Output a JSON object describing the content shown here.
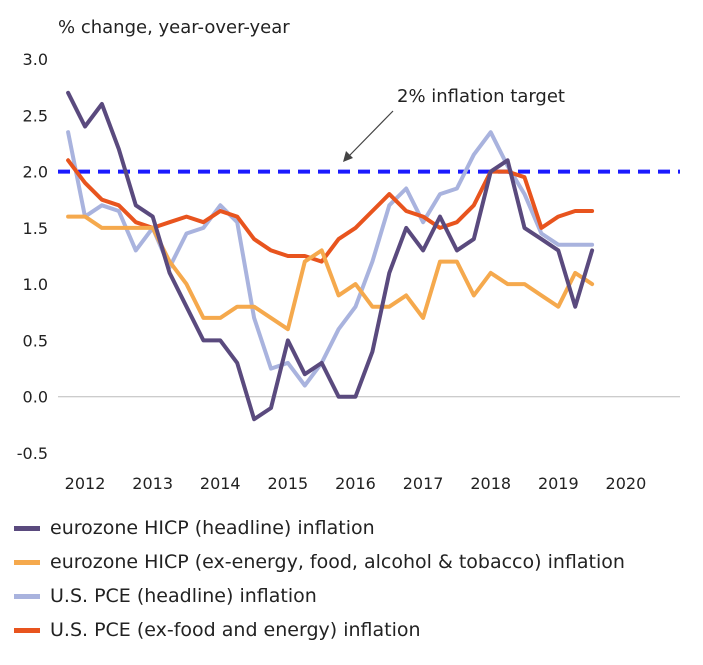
{
  "chart_data": {
    "type": "line",
    "ylabel": "% change, year-over-year",
    "ylim": [
      -0.5,
      3.0
    ],
    "y_ticks": [
      "3.0",
      "2.5",
      "2.0",
      "1.5",
      "1.0",
      "0.5",
      "0.0",
      "-0.5"
    ],
    "y_tick_values": [
      3.0,
      2.5,
      2.0,
      1.5,
      1.0,
      0.5,
      0.0,
      -0.5
    ],
    "x_ticks": [
      "2012",
      "2013",
      "2014",
      "2015",
      "2016",
      "2017",
      "2018",
      "2019",
      "2020"
    ],
    "x_tick_values": [
      2012,
      2013,
      2014,
      2015,
      2016,
      2017,
      2018,
      2019,
      2020
    ],
    "xlim": [
      2011.6,
      2020.8
    ],
    "grid": false,
    "legend_position": "bottom",
    "reference_line": {
      "value": 2.0,
      "label": "2% inflation target",
      "color": "#1a1aff",
      "style": "dashed"
    },
    "series": [
      {
        "name": "eurozone HICP (headline) inflation",
        "color": "#5a4a7e",
        "x": [
          2011.75,
          2012.0,
          2012.25,
          2012.5,
          2012.75,
          2013.0,
          2013.25,
          2013.5,
          2013.75,
          2014.0,
          2014.25,
          2014.5,
          2014.75,
          2015.0,
          2015.25,
          2015.5,
          2015.75,
          2016.0,
          2016.25,
          2016.5,
          2016.75,
          2017.0,
          2017.25,
          2017.5,
          2017.75,
          2018.0,
          2018.25,
          2018.5,
          2018.75,
          2019.0,
          2019.25,
          2019.5
        ],
        "values": [
          2.7,
          2.4,
          2.6,
          2.2,
          1.7,
          1.6,
          1.1,
          0.8,
          0.5,
          0.5,
          0.3,
          -0.2,
          -0.1,
          0.5,
          0.2,
          0.3,
          0.0,
          0.0,
          0.4,
          1.1,
          1.5,
          1.3,
          1.6,
          1.3,
          1.4,
          2.0,
          2.1,
          1.5,
          1.4,
          1.3,
          0.8,
          1.3
        ]
      },
      {
        "name": "eurozone HICP (ex-energy, food, alcohol & tobacco) inflation",
        "color": "#f5a94d",
        "x": [
          2011.75,
          2012.0,
          2012.25,
          2012.5,
          2012.75,
          2013.0,
          2013.25,
          2013.5,
          2013.75,
          2014.0,
          2014.25,
          2014.5,
          2014.75,
          2015.0,
          2015.25,
          2015.5,
          2015.75,
          2016.0,
          2016.25,
          2016.5,
          2016.75,
          2017.0,
          2017.25,
          2017.5,
          2017.75,
          2018.0,
          2018.25,
          2018.5,
          2018.75,
          2019.0,
          2019.25,
          2019.5
        ],
        "values": [
          1.6,
          1.6,
          1.5,
          1.5,
          1.5,
          1.5,
          1.2,
          1.0,
          0.7,
          0.7,
          0.8,
          0.8,
          0.7,
          0.6,
          1.2,
          1.3,
          0.9,
          1.0,
          0.8,
          0.8,
          0.9,
          0.7,
          1.2,
          1.2,
          0.9,
          1.1,
          1.0,
          1.0,
          0.9,
          0.8,
          1.1,
          1.0
        ]
      },
      {
        "name": "U.S. PCE (headline) inflation",
        "color": "#a9b3de",
        "x": [
          2011.75,
          2012.0,
          2012.25,
          2012.5,
          2012.75,
          2013.0,
          2013.25,
          2013.5,
          2013.75,
          2014.0,
          2014.25,
          2014.5,
          2014.75,
          2015.0,
          2015.25,
          2015.5,
          2015.75,
          2016.0,
          2016.25,
          2016.5,
          2016.75,
          2017.0,
          2017.25,
          2017.5,
          2017.75,
          2018.0,
          2018.25,
          2018.5,
          2018.75,
          2019.0,
          2019.25,
          2019.5
        ],
        "values": [
          2.35,
          1.6,
          1.7,
          1.65,
          1.3,
          1.5,
          1.15,
          1.45,
          1.5,
          1.7,
          1.55,
          0.7,
          0.25,
          0.3,
          0.1,
          0.3,
          0.6,
          0.8,
          1.2,
          1.7,
          1.85,
          1.55,
          1.8,
          1.85,
          2.15,
          2.35,
          2.05,
          1.8,
          1.45,
          1.35,
          1.35,
          1.35
        ]
      },
      {
        "name": "U.S. PCE (ex-food and energy) inflation",
        "color": "#e8541e",
        "x": [
          2011.75,
          2012.0,
          2012.25,
          2012.5,
          2012.75,
          2013.0,
          2013.25,
          2013.5,
          2013.75,
          2014.0,
          2014.25,
          2014.5,
          2014.75,
          2015.0,
          2015.25,
          2015.5,
          2015.75,
          2016.0,
          2016.25,
          2016.5,
          2016.75,
          2017.0,
          2017.25,
          2017.5,
          2017.75,
          2018.0,
          2018.25,
          2018.5,
          2018.75,
          2019.0,
          2019.25,
          2019.5
        ],
        "values": [
          2.1,
          1.9,
          1.75,
          1.7,
          1.55,
          1.5,
          1.55,
          1.6,
          1.55,
          1.65,
          1.6,
          1.4,
          1.3,
          1.25,
          1.25,
          1.2,
          1.4,
          1.5,
          1.65,
          1.8,
          1.65,
          1.6,
          1.5,
          1.55,
          1.7,
          2.0,
          2.0,
          1.95,
          1.5,
          1.6,
          1.65,
          1.65
        ]
      }
    ]
  }
}
